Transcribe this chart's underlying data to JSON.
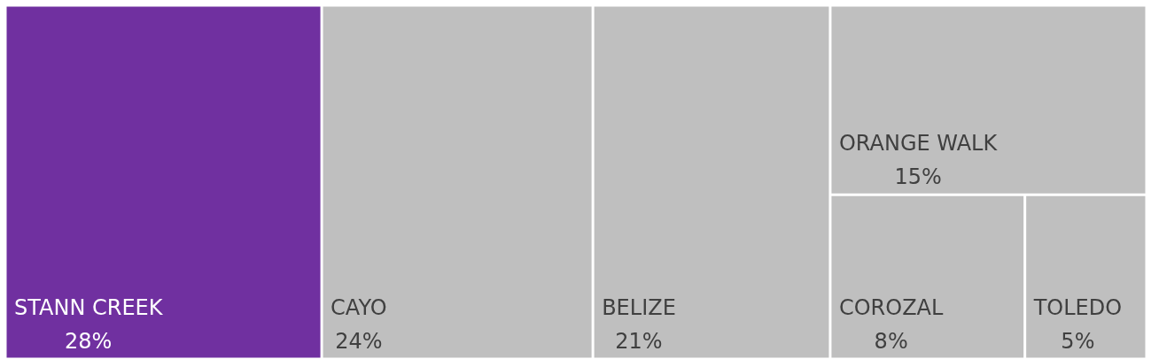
{
  "chart_data": {
    "type": "other",
    "categories": [
      "STANN CREEK",
      "CAYO",
      "BELIZE",
      "ORANGE WALK",
      "COROZAL",
      "TOLEDO"
    ],
    "values": [
      28,
      24,
      21,
      15,
      8,
      5
    ],
    "value_labels": [
      "28%",
      "24%",
      "21%",
      "15%",
      "8%",
      "5%"
    ],
    "colors": [
      "#7030a0",
      "#bfbfbf",
      "#bfbfbf",
      "#bfbfbf",
      "#bfbfbf",
      "#bfbfbf"
    ]
  }
}
